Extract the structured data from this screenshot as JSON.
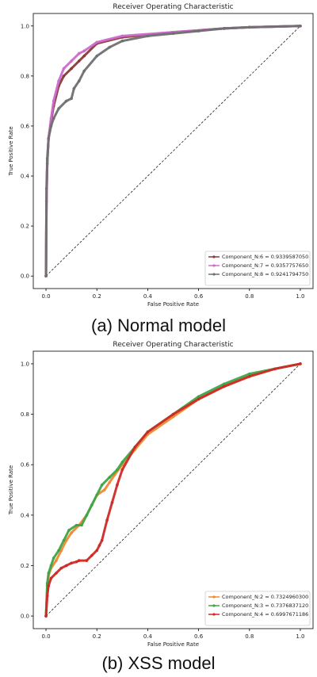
{
  "captions": [
    "(a) Normal model",
    "(b) XSS model"
  ],
  "colors": {
    "brown": "#8b3a3a",
    "magenta": "#cc6ccc",
    "gray": "#707070",
    "orange": "#f08a30",
    "green": "#3fa54a",
    "red": "#cf2a27",
    "dashed": "#222222"
  },
  "chart_data": [
    {
      "type": "line",
      "title": "Receiver Operating Characteristic",
      "xlabel": "False Positive Rate",
      "ylabel": "True Positive Rate",
      "xlim": [
        -0.05,
        1.05
      ],
      "ylim": [
        -0.05,
        1.05
      ],
      "xticks": [
        "0.0",
        "0.2",
        "0.4",
        "0.6",
        "0.8",
        "1.0"
      ],
      "yticks": [
        "0.0",
        "0.2",
        "0.4",
        "0.6",
        "0.8",
        "1.0"
      ],
      "legend_position": "lower-right",
      "series": [
        {
          "name": "Component_N:6 = 0.9339587050",
          "color": "#8b3a3a",
          "x": [
            0,
            0.002,
            0.005,
            0.01,
            0.02,
            0.03,
            0.05,
            0.07,
            0.1,
            0.13,
            0.15,
            0.2,
            0.3,
            0.5,
            0.7,
            0.8,
            1.0
          ],
          "y": [
            0,
            0.3,
            0.45,
            0.55,
            0.62,
            0.68,
            0.76,
            0.8,
            0.83,
            0.86,
            0.88,
            0.93,
            0.955,
            0.975,
            0.99,
            0.995,
            1.0
          ]
        },
        {
          "name": "Component_N:7 = 0.9357757650",
          "color": "#cc6ccc",
          "x": [
            0,
            0.002,
            0.005,
            0.01,
            0.02,
            0.03,
            0.05,
            0.07,
            0.1,
            0.13,
            0.15,
            0.2,
            0.3,
            0.5,
            0.7,
            0.8,
            1.0
          ],
          "y": [
            0,
            0.3,
            0.45,
            0.55,
            0.63,
            0.7,
            0.78,
            0.83,
            0.86,
            0.89,
            0.9,
            0.935,
            0.96,
            0.975,
            0.99,
            0.995,
            1.0
          ]
        },
        {
          "name": "Component_N:8 = 0.9241794750",
          "color": "#707070",
          "x": [
            0,
            0.002,
            0.005,
            0.01,
            0.02,
            0.03,
            0.05,
            0.08,
            0.1,
            0.11,
            0.13,
            0.15,
            0.2,
            0.25,
            0.3,
            0.4,
            0.5,
            0.6,
            0.7,
            0.8,
            1.0
          ],
          "y": [
            0,
            0.35,
            0.47,
            0.55,
            0.6,
            0.63,
            0.67,
            0.7,
            0.71,
            0.75,
            0.78,
            0.82,
            0.88,
            0.915,
            0.94,
            0.96,
            0.97,
            0.98,
            0.99,
            0.995,
            1.0
          ]
        }
      ]
    },
    {
      "type": "line",
      "title": "Receiver Operating Characteristic",
      "xlabel": "False Positive Rate",
      "ylabel": "True Positive Rate",
      "xlim": [
        -0.05,
        1.05
      ],
      "ylim": [
        -0.05,
        1.05
      ],
      "xticks": [
        "0.0",
        "0.2",
        "0.4",
        "0.6",
        "0.8",
        "1.0"
      ],
      "yticks": [
        "0.0",
        "0.2",
        "0.4",
        "0.6",
        "0.8",
        "1.0"
      ],
      "legend_position": "lower-right",
      "series": [
        {
          "name": "Component_N:2 = 0.7324960300",
          "color": "#f08a30",
          "x": [
            0,
            0.005,
            0.01,
            0.02,
            0.04,
            0.06,
            0.08,
            0.1,
            0.13,
            0.16,
            0.18,
            0.2,
            0.23,
            0.25,
            0.27,
            0.3,
            0.35,
            0.4,
            0.5,
            0.6,
            0.7,
            0.8,
            0.9,
            1.0
          ],
          "y": [
            0,
            0.12,
            0.16,
            0.19,
            0.22,
            0.26,
            0.3,
            0.33,
            0.36,
            0.4,
            0.44,
            0.48,
            0.5,
            0.53,
            0.56,
            0.6,
            0.66,
            0.72,
            0.79,
            0.86,
            0.91,
            0.95,
            0.98,
            1.0
          ]
        },
        {
          "name": "Component_N:3 = 0.7376837120",
          "color": "#3fa54a",
          "x": [
            0,
            0.005,
            0.01,
            0.02,
            0.03,
            0.05,
            0.07,
            0.09,
            0.12,
            0.14,
            0.16,
            0.18,
            0.2,
            0.22,
            0.25,
            0.28,
            0.3,
            0.35,
            0.4,
            0.5,
            0.6,
            0.7,
            0.8,
            0.9,
            1.0
          ],
          "y": [
            0,
            0.13,
            0.17,
            0.2,
            0.23,
            0.26,
            0.3,
            0.34,
            0.36,
            0.36,
            0.4,
            0.44,
            0.48,
            0.52,
            0.55,
            0.58,
            0.61,
            0.67,
            0.73,
            0.8,
            0.87,
            0.92,
            0.96,
            0.98,
            1.0
          ]
        },
        {
          "name": "Component_N:4 = 0.6997671186",
          "color": "#cf2a27",
          "x": [
            0,
            0.005,
            0.01,
            0.02,
            0.04,
            0.06,
            0.08,
            0.1,
            0.12,
            0.13,
            0.16,
            0.18,
            0.2,
            0.21,
            0.22,
            0.24,
            0.26,
            0.28,
            0.3,
            0.35,
            0.4,
            0.5,
            0.6,
            0.7,
            0.8,
            0.9,
            1.0
          ],
          "y": [
            0,
            0.08,
            0.12,
            0.15,
            0.17,
            0.19,
            0.2,
            0.21,
            0.215,
            0.22,
            0.22,
            0.24,
            0.26,
            0.28,
            0.3,
            0.38,
            0.45,
            0.52,
            0.58,
            0.67,
            0.73,
            0.8,
            0.86,
            0.91,
            0.95,
            0.98,
            1.0
          ]
        }
      ]
    }
  ]
}
